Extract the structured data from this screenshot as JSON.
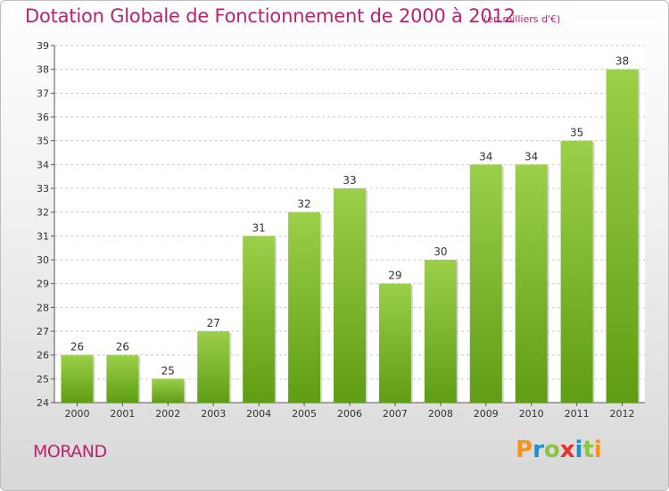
{
  "title": "Dotation Globale de Fonctionnement de 2000 à 2012",
  "subtitle": "(en milliers d'€)",
  "commune": "MORAND",
  "logo": {
    "text": "Proxiti",
    "letters": [
      "P",
      "r",
      "o",
      "x",
      "i",
      "t",
      "i"
    ],
    "letter_colors": [
      "#f7941d",
      "#1b8fd6",
      "#8cc63f",
      "#e8312f",
      "#1b8fd6",
      "#8cc63f",
      "#f7941d"
    ]
  },
  "colors": {
    "title": "#b8236e",
    "bar_top": "#9ccf4a",
    "bar_bottom": "#5f9d14",
    "grid": "#c8c8c8"
  },
  "chart_data": {
    "type": "bar",
    "title": "Dotation Globale de Fonctionnement de 2000 à 2012",
    "subtitle": "(en milliers d'€)",
    "categories": [
      "2000",
      "2001",
      "2002",
      "2003",
      "2004",
      "2005",
      "2006",
      "2007",
      "2008",
      "2009",
      "2010",
      "2011",
      "2012"
    ],
    "values": [
      26,
      26,
      25,
      27,
      31,
      32,
      33,
      29,
      30,
      34,
      34,
      35,
      38
    ],
    "data_labels": [
      "26",
      "26",
      "25",
      "27",
      "31",
      "32",
      "33",
      "29",
      "30",
      "34",
      "34",
      "35",
      "38"
    ],
    "ylim": [
      24,
      39
    ],
    "yticks": [
      24,
      25,
      26,
      27,
      28,
      29,
      30,
      31,
      32,
      33,
      34,
      35,
      36,
      37,
      38,
      39
    ],
    "xlabel": "",
    "ylabel": "",
    "grid": true
  }
}
